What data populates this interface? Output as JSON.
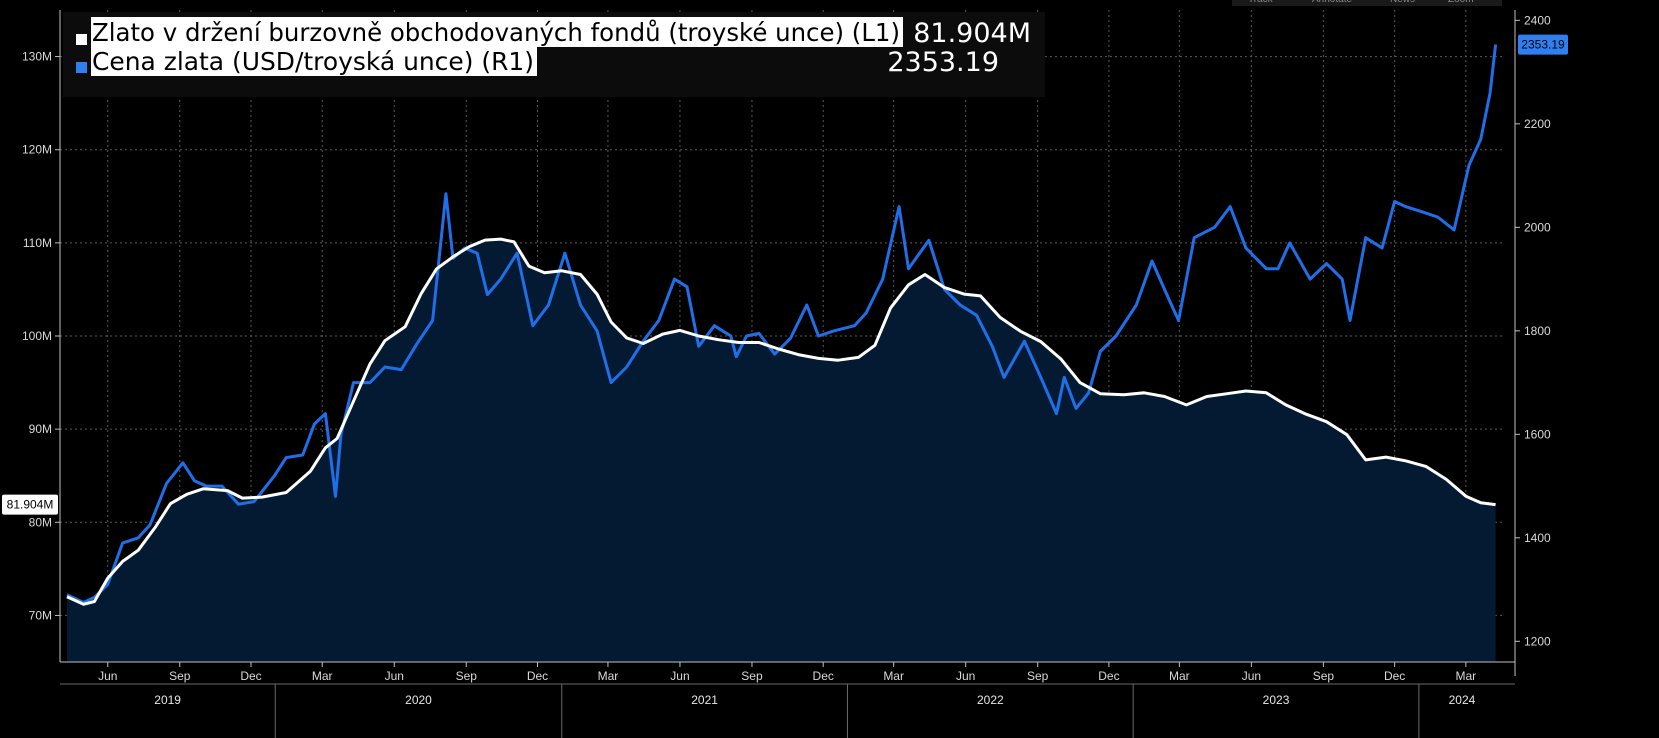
{
  "toolbar": {
    "items": [
      "Track",
      "Annotate",
      "News",
      "Zoom"
    ]
  },
  "legend": {
    "entries": [
      {
        "label": "Zlato v držení burzovně obchodovaných fondů (troyské unce) (L1)",
        "value": "81.904M",
        "color": "#ffffff"
      },
      {
        "label": "Cena zlata (USD/troyská unce) (R1)",
        "value": "2353.19",
        "color": "#2f7ff0"
      }
    ]
  },
  "colors": {
    "background": "#000000",
    "holdings_line": "#ffffff",
    "holdings_fill": "#041a33",
    "price_line": "#1f6fe8",
    "grid": "#5a5a5a"
  },
  "chart_data": {
    "type": "line",
    "grid": true,
    "legend_position": "top-left",
    "x_axis": {
      "start": "2019-04",
      "end": "2024-04",
      "month_ticks": [
        {
          "label": "Jun",
          "date": "2019-06"
        },
        {
          "label": "Sep",
          "date": "2019-09"
        },
        {
          "label": "Dec",
          "date": "2019-12"
        },
        {
          "label": "Mar",
          "date": "2020-03"
        },
        {
          "label": "Jun",
          "date": "2020-06"
        },
        {
          "label": "Sep",
          "date": "2020-09"
        },
        {
          "label": "Dec",
          "date": "2020-12"
        },
        {
          "label": "Mar",
          "date": "2021-03"
        },
        {
          "label": "Jun",
          "date": "2021-06"
        },
        {
          "label": "Sep",
          "date": "2021-09"
        },
        {
          "label": "Dec",
          "date": "2021-12"
        },
        {
          "label": "Mar",
          "date": "2022-03"
        },
        {
          "label": "Jun",
          "date": "2022-06"
        },
        {
          "label": "Sep",
          "date": "2022-09"
        },
        {
          "label": "Dec",
          "date": "2022-12"
        },
        {
          "label": "Mar",
          "date": "2023-03"
        },
        {
          "label": "Jun",
          "date": "2023-06"
        },
        {
          "label": "Sep",
          "date": "2023-09"
        },
        {
          "label": "Dec",
          "date": "2023-12"
        },
        {
          "label": "Mar",
          "date": "2024-03"
        }
      ],
      "year_labels": [
        "2019",
        "2020",
        "2021",
        "2022",
        "2023",
        "2024"
      ]
    },
    "left_axis": {
      "min": 65,
      "max": 135,
      "ticks": [
        {
          "value": 70,
          "label": "70M"
        },
        {
          "value": 80,
          "label": "80M"
        },
        {
          "value": 90,
          "label": "90M"
        },
        {
          "value": 100,
          "label": "100M"
        },
        {
          "value": 110,
          "label": "110M"
        },
        {
          "value": 120,
          "label": "120M"
        },
        {
          "value": 130,
          "label": "130M"
        }
      ],
      "current_value_tag": "81.904M"
    },
    "right_axis": {
      "min": 1160,
      "max": 2420,
      "ticks": [
        {
          "value": 1200,
          "label": "1200"
        },
        {
          "value": 1400,
          "label": "1400"
        },
        {
          "value": 1600,
          "label": "1600"
        },
        {
          "value": 1800,
          "label": "1800"
        },
        {
          "value": 2000,
          "label": "2000"
        },
        {
          "value": 2200,
          "label": "2200"
        },
        {
          "value": 2400,
          "label": "2400"
        }
      ],
      "current_value_tag": "2353.19"
    },
    "series": [
      {
        "name": "Zlato v držení burzovně obchodovaných fondů (troyské unce) (L1)",
        "axis": "left",
        "unit": "M troy oz",
        "points": [
          [
            "2019-04-10",
            72.0
          ],
          [
            "2019-05-01",
            71.2
          ],
          [
            "2019-05-15",
            71.5
          ],
          [
            "2019-06-01",
            74.0
          ],
          [
            "2019-06-20",
            75.8
          ],
          [
            "2019-07-10",
            77.0
          ],
          [
            "2019-08-01",
            79.5
          ],
          [
            "2019-08-20",
            82.0
          ],
          [
            "2019-09-10",
            83.0
          ],
          [
            "2019-10-01",
            83.6
          ],
          [
            "2019-11-01",
            83.4
          ],
          [
            "2019-11-20",
            82.6
          ],
          [
            "2019-12-15",
            82.7
          ],
          [
            "2020-01-15",
            83.2
          ],
          [
            "2020-02-15",
            85.5
          ],
          [
            "2020-03-05",
            88.0
          ],
          [
            "2020-03-20",
            89.0
          ],
          [
            "2020-04-10",
            93.0
          ],
          [
            "2020-05-01",
            97.0
          ],
          [
            "2020-05-20",
            99.5
          ],
          [
            "2020-06-15",
            101.0
          ],
          [
            "2020-07-05",
            104.5
          ],
          [
            "2020-07-25",
            107.2
          ],
          [
            "2020-08-15",
            108.5
          ],
          [
            "2020-09-05",
            109.6
          ],
          [
            "2020-09-25",
            110.3
          ],
          [
            "2020-10-15",
            110.4
          ],
          [
            "2020-11-01",
            110.1
          ],
          [
            "2020-11-20",
            107.5
          ],
          [
            "2020-12-10",
            106.8
          ],
          [
            "2021-01-01",
            107.0
          ],
          [
            "2021-01-25",
            106.6
          ],
          [
            "2021-02-15",
            104.5
          ],
          [
            "2021-03-05",
            101.5
          ],
          [
            "2021-03-25",
            99.8
          ],
          [
            "2021-04-15",
            99.2
          ],
          [
            "2021-05-10",
            100.2
          ],
          [
            "2021-06-01",
            100.6
          ],
          [
            "2021-06-25",
            100.0
          ],
          [
            "2021-07-20",
            99.6
          ],
          [
            "2021-08-15",
            99.3
          ],
          [
            "2021-09-10",
            99.3
          ],
          [
            "2021-10-05",
            98.6
          ],
          [
            "2021-10-30",
            98.0
          ],
          [
            "2021-11-25",
            97.6
          ],
          [
            "2021-12-20",
            97.4
          ],
          [
            "2022-01-15",
            97.7
          ],
          [
            "2022-02-05",
            99.0
          ],
          [
            "2022-02-25",
            103.0
          ],
          [
            "2022-03-20",
            105.5
          ],
          [
            "2022-04-10",
            106.6
          ],
          [
            "2022-05-05",
            105.2
          ],
          [
            "2022-05-30",
            104.5
          ],
          [
            "2022-06-20",
            104.3
          ],
          [
            "2022-07-15",
            102.0
          ],
          [
            "2022-08-10",
            100.5
          ],
          [
            "2022-09-05",
            99.4
          ],
          [
            "2022-10-01",
            97.5
          ],
          [
            "2022-10-25",
            95.0
          ],
          [
            "2022-11-20",
            93.8
          ],
          [
            "2022-12-20",
            93.7
          ],
          [
            "2023-01-15",
            93.9
          ],
          [
            "2023-02-10",
            93.5
          ],
          [
            "2023-03-10",
            92.6
          ],
          [
            "2023-04-05",
            93.5
          ],
          [
            "2023-05-01",
            93.8
          ],
          [
            "2023-05-25",
            94.1
          ],
          [
            "2023-06-20",
            93.9
          ],
          [
            "2023-07-15",
            92.6
          ],
          [
            "2023-08-10",
            91.6
          ],
          [
            "2023-09-05",
            90.8
          ],
          [
            "2023-10-01",
            89.4
          ],
          [
            "2023-10-25",
            86.7
          ],
          [
            "2023-11-20",
            87.0
          ],
          [
            "2023-12-15",
            86.6
          ],
          [
            "2024-01-10",
            86.0
          ],
          [
            "2024-02-05",
            84.6
          ],
          [
            "2024-03-01",
            82.8
          ],
          [
            "2024-03-20",
            82.1
          ],
          [
            "2024-04-08",
            81.9
          ]
        ]
      },
      {
        "name": "Cena zlata (USD/troyská unce) (R1)",
        "axis": "right",
        "unit": "USD/oz",
        "points": [
          [
            "2019-04-10",
            1290
          ],
          [
            "2019-05-01",
            1275
          ],
          [
            "2019-05-15",
            1285
          ],
          [
            "2019-06-01",
            1310
          ],
          [
            "2019-06-20",
            1390
          ],
          [
            "2019-07-10",
            1400
          ],
          [
            "2019-07-25",
            1425
          ],
          [
            "2019-08-15",
            1505
          ],
          [
            "2019-09-05",
            1545
          ],
          [
            "2019-09-20",
            1510
          ],
          [
            "2019-10-05",
            1500
          ],
          [
            "2019-10-25",
            1500
          ],
          [
            "2019-11-15",
            1465
          ],
          [
            "2019-12-05",
            1470
          ],
          [
            "2019-12-31",
            1520
          ],
          [
            "2020-01-15",
            1555
          ],
          [
            "2020-02-05",
            1560
          ],
          [
            "2020-02-20",
            1620
          ],
          [
            "2020-03-05",
            1640
          ],
          [
            "2020-03-18",
            1480
          ],
          [
            "2020-03-25",
            1600
          ],
          [
            "2020-04-10",
            1700
          ],
          [
            "2020-05-01",
            1700
          ],
          [
            "2020-05-20",
            1730
          ],
          [
            "2020-06-10",
            1725
          ],
          [
            "2020-06-30",
            1775
          ],
          [
            "2020-07-20",
            1820
          ],
          [
            "2020-08-06",
            2065
          ],
          [
            "2020-08-15",
            1940
          ],
          [
            "2020-08-30",
            1960
          ],
          [
            "2020-09-15",
            1950
          ],
          [
            "2020-09-28",
            1870
          ],
          [
            "2020-10-15",
            1900
          ],
          [
            "2020-11-05",
            1950
          ],
          [
            "2020-11-25",
            1810
          ],
          [
            "2020-12-15",
            1850
          ],
          [
            "2021-01-05",
            1950
          ],
          [
            "2021-01-25",
            1850
          ],
          [
            "2021-02-15",
            1800
          ],
          [
            "2021-03-05",
            1700
          ],
          [
            "2021-03-25",
            1730
          ],
          [
            "2021-04-15",
            1780
          ],
          [
            "2021-05-05",
            1820
          ],
          [
            "2021-05-25",
            1900
          ],
          [
            "2021-06-10",
            1885
          ],
          [
            "2021-06-25",
            1770
          ],
          [
            "2021-07-15",
            1810
          ],
          [
            "2021-08-05",
            1790
          ],
          [
            "2021-08-12",
            1750
          ],
          [
            "2021-08-25",
            1790
          ],
          [
            "2021-09-10",
            1795
          ],
          [
            "2021-09-30",
            1755
          ],
          [
            "2021-10-20",
            1785
          ],
          [
            "2021-11-10",
            1850
          ],
          [
            "2021-11-25",
            1790
          ],
          [
            "2021-12-15",
            1800
          ],
          [
            "2022-01-10",
            1810
          ],
          [
            "2022-01-25",
            1835
          ],
          [
            "2022-02-15",
            1900
          ],
          [
            "2022-03-08",
            2040
          ],
          [
            "2022-03-20",
            1920
          ],
          [
            "2022-04-15",
            1975
          ],
          [
            "2022-05-05",
            1880
          ],
          [
            "2022-05-25",
            1850
          ],
          [
            "2022-06-15",
            1830
          ],
          [
            "2022-07-05",
            1770
          ],
          [
            "2022-07-20",
            1710
          ],
          [
            "2022-08-15",
            1780
          ],
          [
            "2022-09-05",
            1710
          ],
          [
            "2022-09-25",
            1640
          ],
          [
            "2022-10-05",
            1710
          ],
          [
            "2022-10-20",
            1650
          ],
          [
            "2022-11-05",
            1680
          ],
          [
            "2022-11-20",
            1760
          ],
          [
            "2022-12-10",
            1790
          ],
          [
            "2023-01-05",
            1850
          ],
          [
            "2023-01-25",
            1935
          ],
          [
            "2023-02-10",
            1880
          ],
          [
            "2023-02-28",
            1820
          ],
          [
            "2023-03-20",
            1980
          ],
          [
            "2023-04-15",
            2000
          ],
          [
            "2023-05-05",
            2040
          ],
          [
            "2023-05-25",
            1960
          ],
          [
            "2023-06-20",
            1920
          ],
          [
            "2023-07-05",
            1920
          ],
          [
            "2023-07-20",
            1970
          ],
          [
            "2023-08-15",
            1900
          ],
          [
            "2023-09-05",
            1930
          ],
          [
            "2023-09-25",
            1900
          ],
          [
            "2023-10-05",
            1820
          ],
          [
            "2023-10-25",
            1980
          ],
          [
            "2023-11-15",
            1960
          ],
          [
            "2023-12-01",
            2050
          ],
          [
            "2023-12-15",
            2040
          ],
          [
            "2024-01-05",
            2030
          ],
          [
            "2024-01-25",
            2020
          ],
          [
            "2024-02-15",
            1995
          ],
          [
            "2024-03-05",
            2120
          ],
          [
            "2024-03-20",
            2170
          ],
          [
            "2024-04-01",
            2260
          ],
          [
            "2024-04-08",
            2353.19
          ]
        ]
      }
    ]
  }
}
